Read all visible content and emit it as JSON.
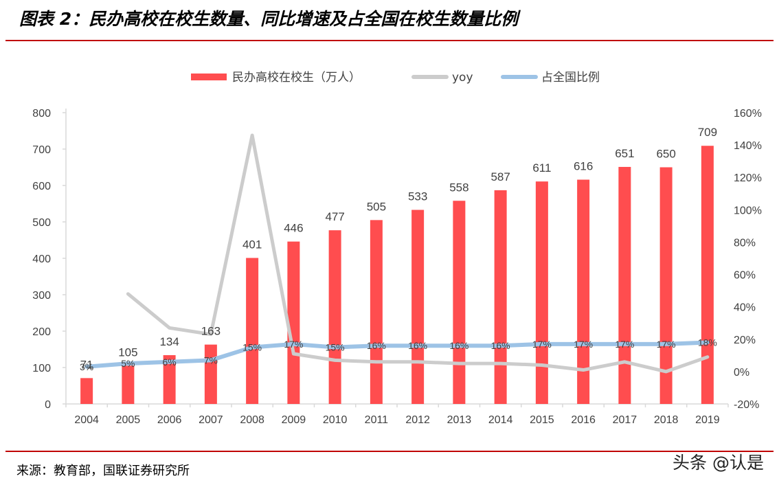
{
  "title": "图表 2：民办高校在校生数量、同比增速及占全国在校生数量比例",
  "source": "来源：教育部，国联证券研究所",
  "watermark": "头条 @认是",
  "colors": {
    "bar": "#ff4d4f",
    "yoy": "#cccccc",
    "ratio": "#9dc3e6",
    "rule": "#c00000",
    "axis": "#d9d9d9"
  },
  "chart_data": {
    "type": "bar",
    "categories": [
      "2004",
      "2005",
      "2006",
      "2007",
      "2008",
      "2009",
      "2010",
      "2011",
      "2012",
      "2013",
      "2014",
      "2015",
      "2016",
      "2017",
      "2018",
      "2019"
    ],
    "series": [
      {
        "name": "民办高校在校生（万人）",
        "type": "bar",
        "axis": "left",
        "values": [
          71,
          105,
          134,
          163,
          401,
          446,
          477,
          505,
          533,
          558,
          587,
          611,
          616,
          651,
          650,
          709
        ],
        "labels": [
          "71",
          "105",
          "134",
          "163",
          "401",
          "446",
          "477",
          "505",
          "533",
          "558",
          "587",
          "611",
          "616",
          "651",
          "650",
          "709"
        ]
      },
      {
        "name": "yoy",
        "type": "line",
        "axis": "right",
        "values": [
          null,
          48,
          27,
          23,
          146,
          11,
          7,
          6,
          6,
          5,
          5,
          4,
          1,
          6,
          0,
          9
        ]
      },
      {
        "name": "占全国比例",
        "type": "line",
        "axis": "right",
        "values": [
          3,
          5,
          6,
          7,
          15,
          17,
          15,
          16,
          16,
          16,
          16,
          17,
          17,
          17,
          17,
          18
        ],
        "labels": [
          "3%",
          "5%",
          "6%",
          "7%",
          "15%",
          "17%",
          "15%",
          "16%",
          "16%",
          "16%",
          "16%",
          "17%",
          "17%",
          "17%",
          "17%",
          "18%"
        ]
      }
    ],
    "y_left": {
      "ticks": [
        "0",
        "100",
        "200",
        "300",
        "400",
        "500",
        "600",
        "700",
        "800"
      ],
      "lim": [
        0,
        800
      ]
    },
    "y_right": {
      "ticks": [
        "-20%",
        "0%",
        "20%",
        "40%",
        "60%",
        "80%",
        "100%",
        "120%",
        "140%",
        "160%"
      ],
      "lim": [
        -20,
        160
      ]
    },
    "legend_position": "top-center",
    "grid": false
  }
}
